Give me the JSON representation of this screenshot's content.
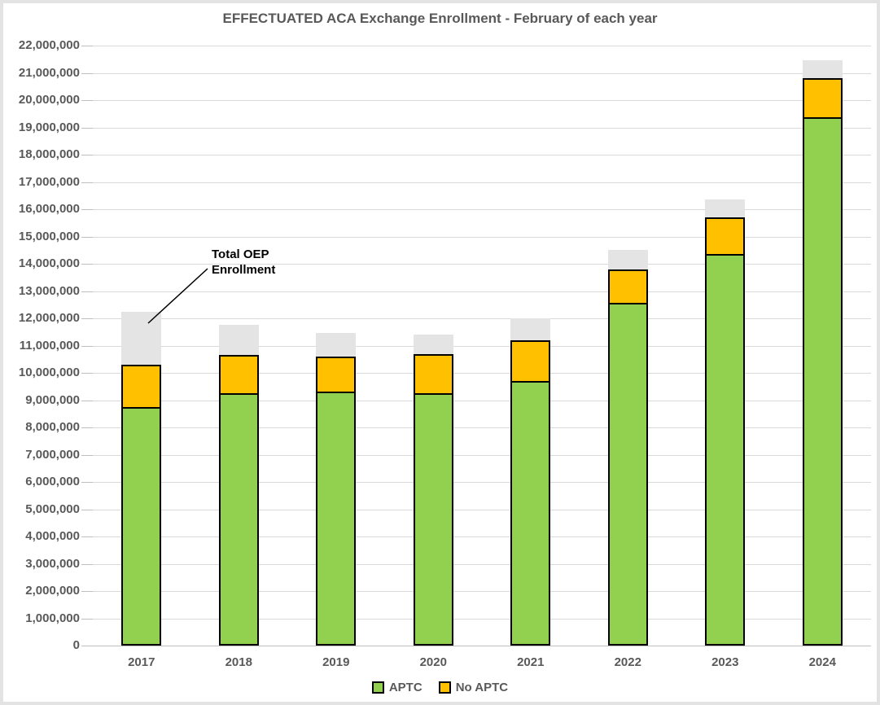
{
  "chart_data": {
    "type": "bar",
    "stacked": true,
    "title": "EFFECTUATED ACA Exchange Enrollment - February of each year",
    "categories": [
      "2017",
      "2018",
      "2019",
      "2020",
      "2021",
      "2022",
      "2023",
      "2024"
    ],
    "series": [
      {
        "name": "APTC",
        "color": "#92d050",
        "values": [
          8700000,
          9200000,
          9250000,
          9200000,
          9650000,
          12500000,
          14300000,
          19300000
        ]
      },
      {
        "name": "No APTC",
        "color": "#ffc000",
        "values": [
          1600000,
          1450000,
          1350000,
          1500000,
          1550000,
          1300000,
          1400000,
          1500000
        ]
      }
    ],
    "effectuated_totals": [
      10300000,
      10650000,
      10600000,
      10700000,
      11200000,
      13800000,
      15700000,
      20800000
    ],
    "oep_totals": [
      12250000,
      11750000,
      11450000,
      11400000,
      12000000,
      14500000,
      16350000,
      21450000
    ],
    "oep_cap_color": "#e4e4e4",
    "ylim": [
      0,
      22000000
    ],
    "y_tick_interval": 1000000,
    "grid": true,
    "legend_position": "bottom",
    "annotation": {
      "line1": "Total OEP",
      "line2": "Enrollment"
    }
  },
  "legend": {
    "items": [
      {
        "label": "APTC",
        "color": "#92d050"
      },
      {
        "label": "No APTC",
        "color": "#ffc000"
      }
    ]
  },
  "colors": {
    "aptc": "#92d050",
    "no_aptc": "#ffc000",
    "oep_cap": "#e4e4e4",
    "gridline": "#d9d9d9",
    "axis_text": "#595959",
    "frame_border": "#e3e3e3"
  }
}
